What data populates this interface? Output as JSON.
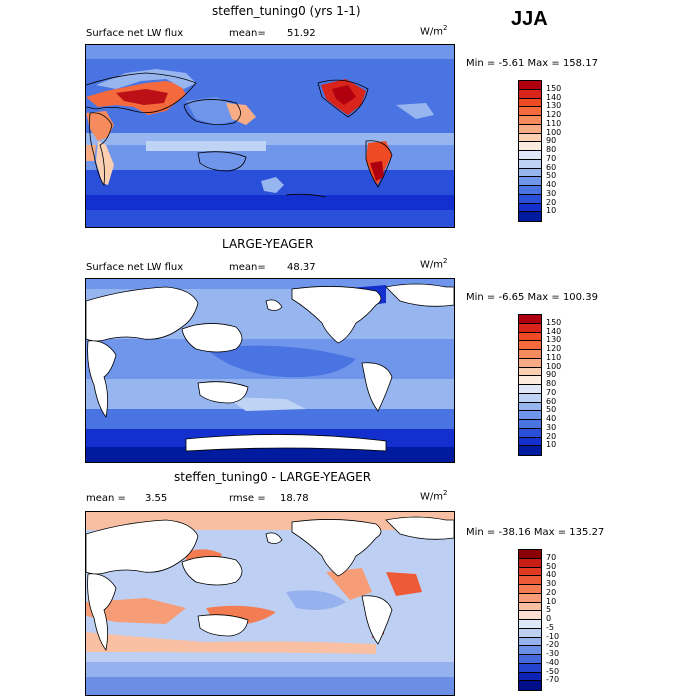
{
  "season": "JJA",
  "units": {
    "base": "W/m",
    "exp": "2"
  },
  "panels": [
    {
      "title": "steffen_tuning0 (yrs 1-1)",
      "variable": "Surface net LW flux",
      "mean_label": "mean=",
      "mean_value": "51.92",
      "minmax": "Min =  -5.61 Max = 158.17",
      "levels": [
        "150",
        "140",
        "130",
        "120",
        "110",
        "100",
        "90",
        "80",
        "70",
        "60",
        "50",
        "40",
        "30",
        "20",
        "10"
      ],
      "colors": [
        "#b0000f",
        "#d8241a",
        "#ee4a24",
        "#f46a3c",
        "#f68c5e",
        "#f8ac86",
        "#fbcfb2",
        "#fcebdf",
        "#e0e8f7",
        "#bfd3f4",
        "#97b6f0",
        "#7096ec",
        "#4b74e3",
        "#2a4fd8",
        "#1330cf",
        "#001b9e"
      ]
    },
    {
      "title": "LARGE-YEAGER",
      "variable": "Surface net LW flux",
      "mean_label": "mean=",
      "mean_value": "48.37",
      "minmax": "Min =  -6.65 Max = 100.39",
      "levels": [
        "150",
        "140",
        "130",
        "120",
        "110",
        "100",
        "90",
        "80",
        "70",
        "60",
        "50",
        "40",
        "30",
        "20",
        "10"
      ],
      "colors": [
        "#b0000f",
        "#d8241a",
        "#ee4a24",
        "#f46a3c",
        "#f68c5e",
        "#f8ac86",
        "#fbcfb2",
        "#fcebdf",
        "#e0e8f7",
        "#bfd3f4",
        "#97b6f0",
        "#7096ec",
        "#4b74e3",
        "#2a4fd8",
        "#1330cf",
        "#001b9e"
      ]
    },
    {
      "title": "steffen_tuning0 - LARGE-YEAGER",
      "mean_label": "mean =",
      "mean_value": "3.55",
      "rmse_label": "rmse =",
      "rmse_value": "18.78",
      "minmax": "Min = -38.16 Max = 135.27",
      "levels": [
        "70",
        "50",
        "40",
        "30",
        "20",
        "10",
        "5",
        "0",
        "-5",
        "-10",
        "-20",
        "-30",
        "-40",
        "-50",
        "-70"
      ],
      "colors": [
        "#8b0000",
        "#c81e14",
        "#e23a22",
        "#ee5a35",
        "#f47c53",
        "#f69d78",
        "#f8bfa2",
        "#fbdfd0",
        "#dfe8f8",
        "#bdd0f4",
        "#96b2ee",
        "#6c8fe6",
        "#4569dc",
        "#2444cd",
        "#0c23b5",
        "#000e8a"
      ]
    }
  ]
}
